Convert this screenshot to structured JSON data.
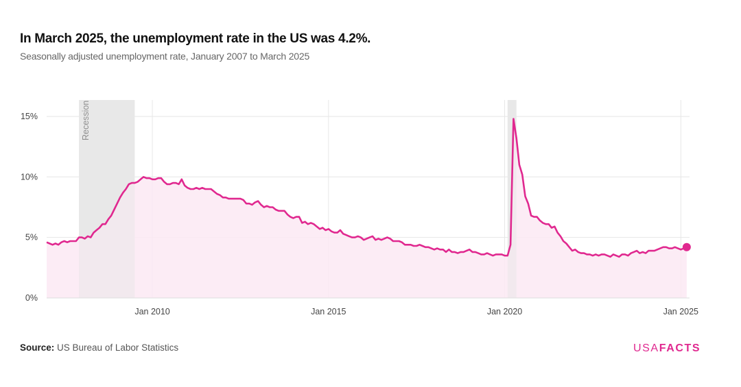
{
  "header": {
    "title": "In March 2025, the unemployment rate in the US was 4.2%.",
    "subtitle": "Seasonally adjusted unemployment rate, January 2007 to March 2025"
  },
  "footer": {
    "source_label": "Source:",
    "source_text": "US Bureau of Labor Statistics",
    "logo_light": "USA",
    "logo_bold": "FACTS"
  },
  "colors": {
    "line": "#e0288f",
    "fill": "#fbe9f3",
    "recession": "#e8e8e8",
    "grid": "#e6e6e6"
  },
  "chart_data": {
    "type": "area",
    "title": "In March 2025, the unemployment rate in the US was 4.2%.",
    "xlabel": "",
    "ylabel": "",
    "start": "2007-01",
    "frequency": "monthly",
    "ylim": [
      0,
      16.5
    ],
    "yticks": [
      {
        "v": 0,
        "label": "0%"
      },
      {
        "v": 5,
        "label": "5%"
      },
      {
        "v": 10,
        "label": "10%"
      },
      {
        "v": 15,
        "label": "15%"
      }
    ],
    "xticks": [
      {
        "year": 2010,
        "label": "Jan 2010"
      },
      {
        "year": 2015,
        "label": "Jan 2015"
      },
      {
        "year": 2020,
        "label": "Jan 2020"
      },
      {
        "year": 2025,
        "label": "Jan 2025"
      }
    ],
    "recessions": [
      {
        "start": "2007-12",
        "end": "2009-06",
        "label": "Recession"
      },
      {
        "start": "2020-02",
        "end": "2020-04",
        "label": ""
      }
    ],
    "values": [
      4.6,
      4.5,
      4.4,
      4.5,
      4.4,
      4.6,
      4.7,
      4.6,
      4.7,
      4.7,
      4.7,
      5.0,
      5.0,
      4.9,
      5.1,
      5.0,
      5.4,
      5.6,
      5.8,
      6.1,
      6.1,
      6.5,
      6.8,
      7.3,
      7.8,
      8.3,
      8.7,
      9.0,
      9.4,
      9.5,
      9.5,
      9.6,
      9.8,
      10.0,
      9.9,
      9.9,
      9.8,
      9.8,
      9.9,
      9.9,
      9.6,
      9.4,
      9.4,
      9.5,
      9.5,
      9.4,
      9.8,
      9.3,
      9.1,
      9.0,
      9.0,
      9.1,
      9.0,
      9.1,
      9.0,
      9.0,
      9.0,
      8.8,
      8.6,
      8.5,
      8.3,
      8.3,
      8.2,
      8.2,
      8.2,
      8.2,
      8.2,
      8.1,
      7.8,
      7.8,
      7.7,
      7.9,
      8.0,
      7.7,
      7.5,
      7.6,
      7.5,
      7.5,
      7.3,
      7.2,
      7.2,
      7.2,
      6.9,
      6.7,
      6.6,
      6.7,
      6.7,
      6.2,
      6.3,
      6.1,
      6.2,
      6.1,
      5.9,
      5.7,
      5.8,
      5.6,
      5.7,
      5.5,
      5.4,
      5.4,
      5.6,
      5.3,
      5.2,
      5.1,
      5.0,
      5.0,
      5.1,
      5.0,
      4.8,
      4.9,
      5.0,
      5.1,
      4.8,
      4.9,
      4.8,
      4.9,
      5.0,
      4.9,
      4.7,
      4.7,
      4.7,
      4.6,
      4.4,
      4.4,
      4.4,
      4.3,
      4.3,
      4.4,
      4.3,
      4.2,
      4.2,
      4.1,
      4.0,
      4.1,
      4.0,
      4.0,
      3.8,
      4.0,
      3.8,
      3.8,
      3.7,
      3.8,
      3.8,
      3.9,
      4.0,
      3.8,
      3.8,
      3.7,
      3.6,
      3.6,
      3.7,
      3.6,
      3.5,
      3.6,
      3.6,
      3.6,
      3.5,
      3.5,
      4.4,
      14.8,
      13.2,
      11.0,
      10.2,
      8.4,
      7.8,
      6.8,
      6.7,
      6.7,
      6.4,
      6.2,
      6.1,
      6.1,
      5.8,
      5.9,
      5.4,
      5.1,
      4.7,
      4.5,
      4.2,
      3.9,
      4.0,
      3.8,
      3.7,
      3.7,
      3.6,
      3.6,
      3.5,
      3.6,
      3.5,
      3.6,
      3.6,
      3.5,
      3.4,
      3.6,
      3.5,
      3.4,
      3.6,
      3.6,
      3.5,
      3.7,
      3.8,
      3.9,
      3.7,
      3.8,
      3.7,
      3.9,
      3.9,
      3.9,
      4.0,
      4.1,
      4.2,
      4.2,
      4.1,
      4.1,
      4.2,
      4.1,
      4.0,
      4.1,
      4.2
    ]
  }
}
